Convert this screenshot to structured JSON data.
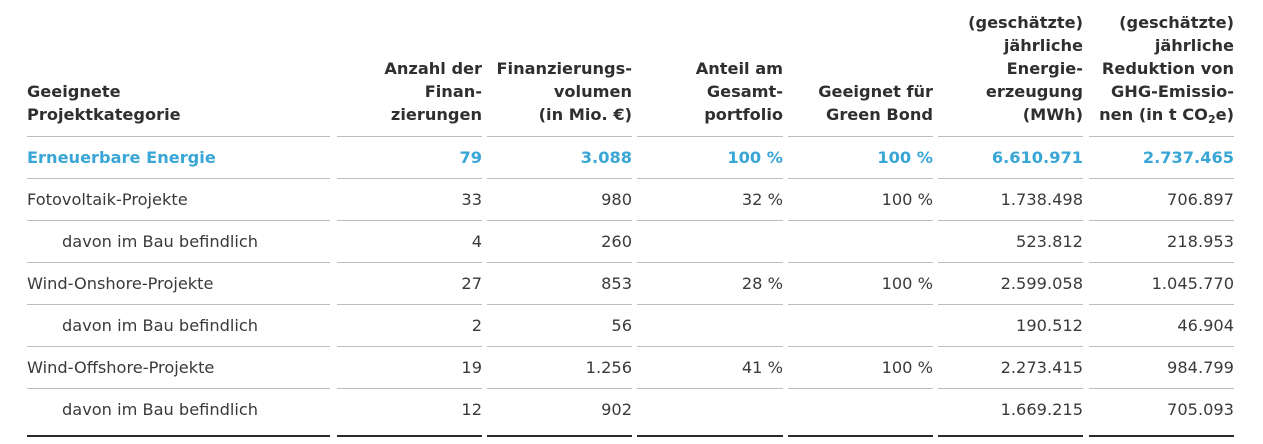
{
  "colors": {
    "accent": "#3aa6d6",
    "text": "#3a3a3a",
    "rule_thin": "#bcbcbc",
    "rule_thick": "#2a2a2a"
  },
  "table": {
    "headers": [
      "Geeignete\nProjektkategorie",
      "Anzahl der\nFinan-\nzierungen",
      "Finanzierungs-\nvolumen\n(in Mio. €)",
      "Anteil am\nGesamt-\nportfolio",
      "Geeignet für\nGreen Bond",
      "(geschätzte)\njährliche\nEnergie-\nerzeugung\n(MWh)",
      "(geschätzte)\njährliche\nReduktion von\nGHG-Emissio-\nnen (in t CO₂e)"
    ],
    "rows": [
      {
        "highlight": true,
        "indent": false,
        "cells": [
          "Erneuerbare Energie",
          "79",
          "3.088",
          "100 %",
          "100 %",
          "6.610.971",
          "2.737.465"
        ]
      },
      {
        "highlight": false,
        "indent": false,
        "cells": [
          "Fotovoltaik-Projekte",
          "33",
          "980",
          "32 %",
          "100 %",
          "1.738.498",
          "706.897"
        ]
      },
      {
        "highlight": false,
        "indent": true,
        "cells": [
          "davon im Bau befindlich",
          "4",
          "260",
          "",
          "",
          "523.812",
          "218.953"
        ]
      },
      {
        "highlight": false,
        "indent": false,
        "cells": [
          "Wind-Onshore-Projekte",
          "27",
          "853",
          "28 %",
          "100 %",
          "2.599.058",
          "1.045.770"
        ]
      },
      {
        "highlight": false,
        "indent": true,
        "cells": [
          "davon im Bau befindlich",
          "2",
          "56",
          "",
          "",
          "190.512",
          "46.904"
        ]
      },
      {
        "highlight": false,
        "indent": false,
        "cells": [
          "Wind-Offshore-Projekte",
          "19",
          "1.256",
          "41 %",
          "100 %",
          "2.273.415",
          "984.799"
        ]
      },
      {
        "highlight": false,
        "indent": true,
        "cells": [
          "davon im Bau befindlich",
          "12",
          "902",
          "",
          "",
          "1.669.215",
          "705.093"
        ]
      }
    ]
  }
}
